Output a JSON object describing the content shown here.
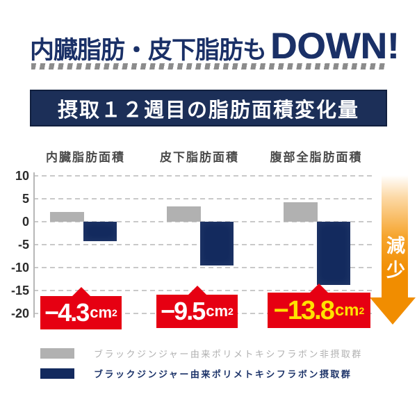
{
  "header": {
    "title_main": "内臓脂肪・皮下脂肪も",
    "title_accent": "DOWN!",
    "banner_title": "摂取１２週目の脂肪面積変化量"
  },
  "chart_data": {
    "type": "bar",
    "title": "摂取１２週目の脂肪面積変化量",
    "categories": [
      "内臓脂肪面積",
      "皮下脂肪面積",
      "腹部全脂肪面積"
    ],
    "series": [
      {
        "name": "ブラックジンジャー由来ポリメトキシフラボン非摂取群",
        "color": "#b1b1b1",
        "values": [
          2.1,
          3.3,
          4.2
        ]
      },
      {
        "name": "ブラックジンジャー由来ポリメトキシフラボン摂取群",
        "color": "#132a5e",
        "values": [
          -4.3,
          -9.5,
          -13.8
        ]
      }
    ],
    "yticks": [
      10,
      5,
      0,
      -5,
      -10,
      -15,
      -20
    ],
    "ylim": [
      -20,
      10
    ],
    "grid": true,
    "legend_position": "bottom",
    "annotations": [
      {
        "value": "−4.3",
        "unit_base": "cm",
        "unit_sup": "2",
        "text_color": "#ffffff",
        "bg": "#e60012"
      },
      {
        "value": "−9.5",
        "unit_base": "cm",
        "unit_sup": "2",
        "text_color": "#ffffff",
        "bg": "#e60012"
      },
      {
        "value": "−13.8",
        "unit_base": "cm",
        "unit_sup": "2",
        "text_color": "#ffe100",
        "bg": "#e60012"
      }
    ],
    "arrow_label": "減少"
  },
  "legend": {
    "items": [
      {
        "label": "ブラックジンジャー由来ポリメトキシフラボン非摂取群",
        "color": "#b1b1b1",
        "text_color": "#b0b0b0",
        "bold": false
      },
      {
        "label": "ブラックジンジャー由来ポリメトキシフラボン摂取群",
        "color": "#132a5e",
        "text_color": "#1b3268",
        "bold": true
      }
    ]
  },
  "palette": {
    "title_navy": "#1a3067",
    "banner_bg": "#1c2f58",
    "bar_gray": "#b1b1b1",
    "bar_navy": "#132a5e",
    "callout_red": "#e60012",
    "highlight_yellow": "#ffe100",
    "arrow_orange": "#f18d00"
  }
}
